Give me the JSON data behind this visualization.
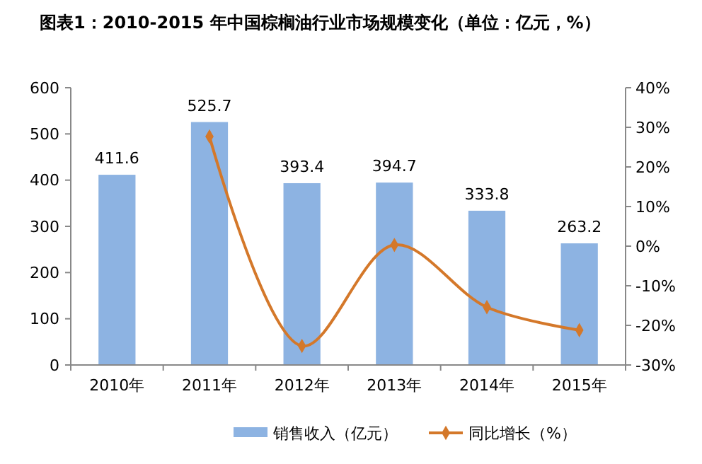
{
  "chart_data": {
    "type": "bar",
    "title": "图表1：2010-2015 年中国棕榈油行业市场规模变化（单位：亿元，%）",
    "categories": [
      "2010年",
      "2011年",
      "2012年",
      "2013年",
      "2014年",
      "2015年"
    ],
    "series": [
      {
        "name": "销售收入（亿元）",
        "color": "#8db3e2",
        "values": [
          411.6,
          525.7,
          393.4,
          394.7,
          333.8,
          263.2
        ],
        "value_labels": [
          "411.6",
          "525.7",
          "393.4",
          "394.7",
          "333.8",
          "263.2"
        ]
      },
      {
        "name": "同比增长（%）",
        "type": "line",
        "axis": "y2",
        "color": "#d4782a",
        "marker": "diamond",
        "values": [
          null,
          27.7,
          -25.2,
          0.3,
          -15.4,
          -21.2
        ]
      }
    ],
    "ylim": [
      0,
      600
    ],
    "yticks": [
      0,
      100,
      200,
      300,
      400,
      500,
      600
    ],
    "y2lim": [
      -30,
      40
    ],
    "y2ticks": [
      {
        "value": -30,
        "label": "-30%"
      },
      {
        "value": -20,
        "label": "-20%"
      },
      {
        "value": -10,
        "label": "-10%"
      },
      {
        "value": 0,
        "label": "0%"
      },
      {
        "value": 10,
        "label": "10%"
      },
      {
        "value": 20,
        "label": "20%"
      },
      {
        "value": 30,
        "label": "30%"
      },
      {
        "value": 40,
        "label": "40%"
      }
    ],
    "legend": "bottom"
  }
}
